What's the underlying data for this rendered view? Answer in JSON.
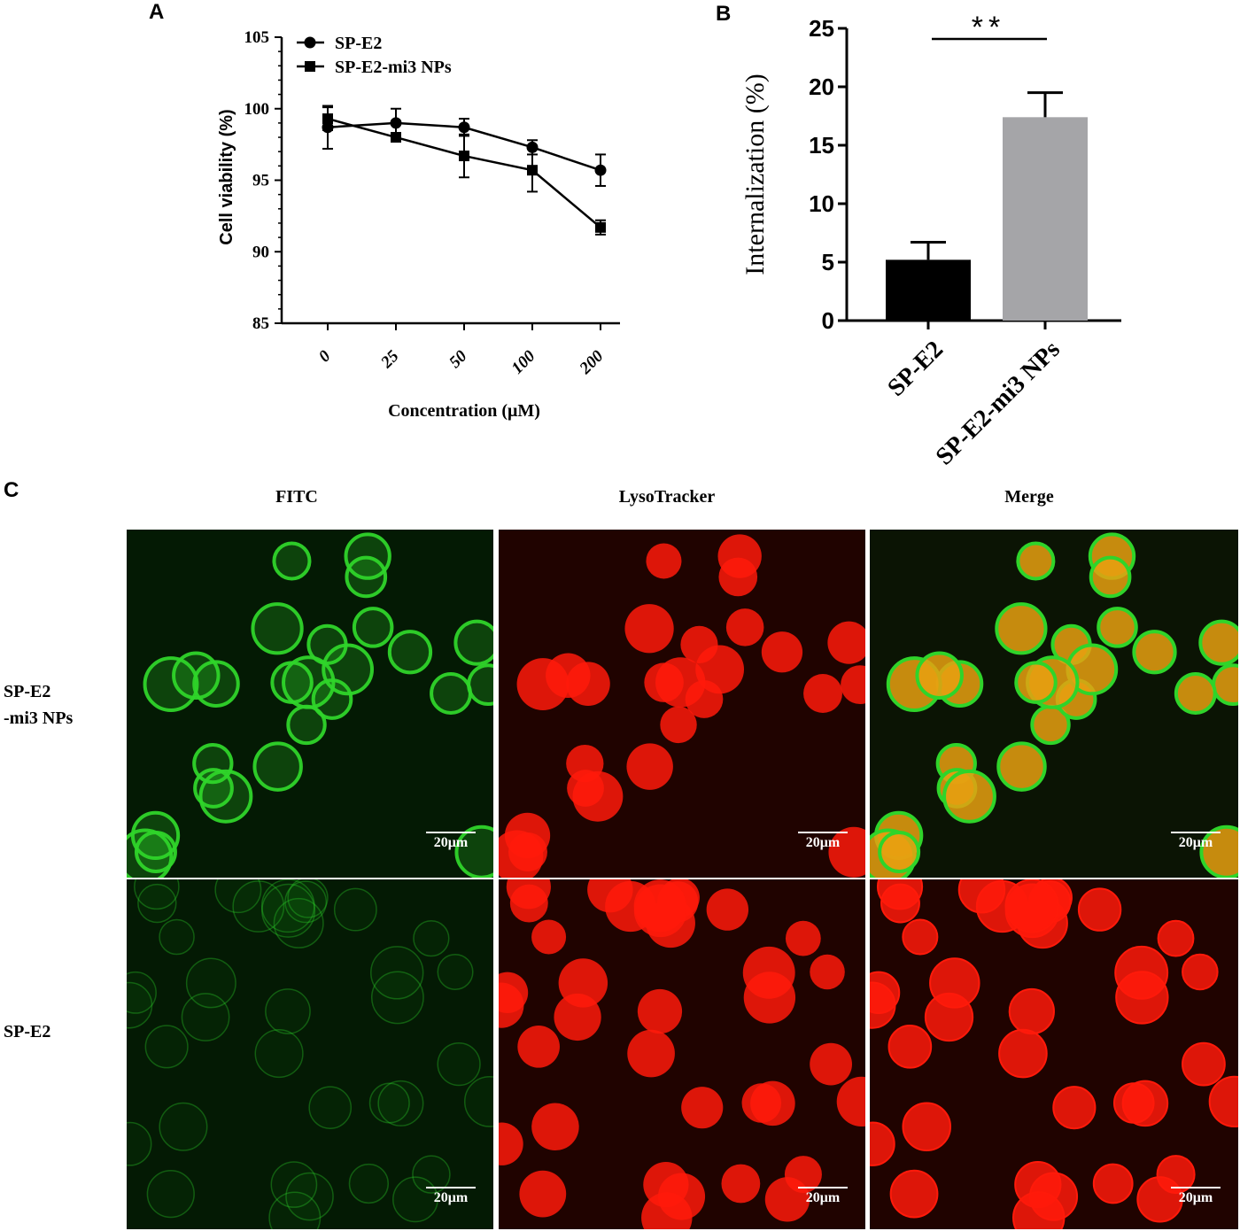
{
  "panels": {
    "a": "A",
    "b": "B",
    "c": "C"
  },
  "chart_data": [
    {
      "type": "line",
      "x": [
        "0",
        "25",
        "50",
        "100",
        "200"
      ],
      "xlabel": "Concentration (μM)",
      "ylabel": "Cell viability (%)",
      "ylim": [
        85,
        105
      ],
      "yticks": [
        85,
        90,
        95,
        100,
        105
      ],
      "legend": "top-left",
      "series": [
        {
          "name": "SP-E2",
          "marker": "circle",
          "values": [
            98.7,
            99.0,
            98.7,
            97.3,
            95.7
          ],
          "errors": [
            1.5,
            1.0,
            0.6,
            0.5,
            1.1
          ]
        },
        {
          "name": "SP-E2-mi3 NPs",
          "marker": "square",
          "values": [
            99.3,
            98.0,
            96.7,
            95.7,
            91.7
          ],
          "errors": [
            0.8,
            0.3,
            1.5,
            1.5,
            0.5
          ]
        }
      ]
    },
    {
      "type": "bar",
      "categories": [
        "SP-E2",
        "SP-E2-mi3 NPs"
      ],
      "values": [
        5.2,
        17.4
      ],
      "errors": [
        1.5,
        2.1
      ],
      "colors": [
        "#000000",
        "#a5a5a8"
      ],
      "ylabel": "Internalization (%)",
      "ylim": [
        0,
        25
      ],
      "yticks": [
        0,
        5,
        10,
        15,
        20,
        25
      ],
      "significance": "**"
    }
  ],
  "micrographs": {
    "columns": [
      "FITC",
      "LysoTracker",
      "Merge"
    ],
    "rows": [
      {
        "label_line1": "SP-E2",
        "label_line2": "-mi3 NPs"
      },
      {
        "label_line1": "SP-E2",
        "label_line2": ""
      }
    ],
    "scale_bar": "20μm",
    "colors": {
      "green": "#2fd42a",
      "red": "#ff1a0a",
      "bg_green": "#041a04",
      "bg_red": "#200300"
    }
  }
}
